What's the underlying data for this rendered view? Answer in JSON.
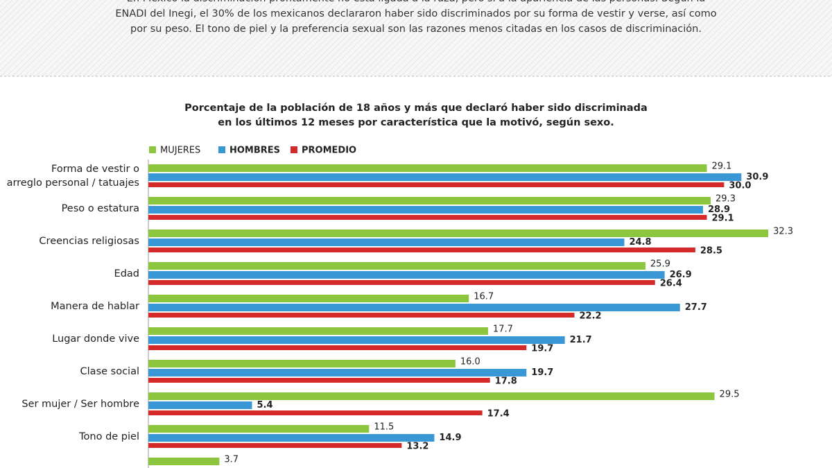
{
  "intro": "En México la discriminación prontamente no está ligada a la raza, pero sí a la apariencia de las personas. Según la\nENADI del Inegi, el 30% de los mexicanos declararon haber sido discriminados por su forma de vestir y verse, así como\npor su peso. El tono de piel y la preferencia sexual son las razones menos citadas en los casos de discriminación.",
  "chart_data": {
    "type": "barh",
    "title": "Porcentaje de la población de 18 años y más que declaró haber sido discriminada\nen los últimos 12 meses por característica que la motivó, según sexo.",
    "categories": [
      "Forma de vestir o\narreglo personal / tatuajes",
      "Peso o estatura",
      "Creencias religiosas",
      "Edad",
      "Manera de hablar",
      "Lugar donde vive",
      "Clase social",
      "Ser mujer / Ser hombre",
      "Tono de piel",
      null
    ],
    "xlim": [
      0,
      33
    ],
    "series": [
      {
        "name": "MUJERES",
        "color": "#8cc63e",
        "values": [
          29.1,
          29.3,
          32.3,
          25.9,
          16.7,
          17.7,
          16.0,
          29.5,
          11.5,
          3.7
        ],
        "value_labels": [
          "29.1",
          "29.3",
          "32.3",
          "25.9",
          "16.7",
          "17.7",
          "16.0",
          "29.5",
          "11.5",
          "3.7"
        ]
      },
      {
        "name": "HOMBRES",
        "color": "#3a97d6",
        "values": [
          30.9,
          28.9,
          24.8,
          26.9,
          27.7,
          21.7,
          19.7,
          5.4,
          14.9,
          null
        ],
        "value_labels": [
          "30.9",
          "28.9",
          "24.8",
          "26.9",
          "27.7",
          "21.7",
          "19.7",
          "5.4",
          "14.9",
          null
        ]
      },
      {
        "name": "PROMEDIO",
        "color": "#d52a2a",
        "values": [
          30.0,
          29.1,
          28.5,
          26.4,
          22.2,
          19.7,
          17.8,
          17.4,
          13.2,
          null
        ],
        "value_labels": [
          "30.0",
          "29.1",
          "28.5",
          "26.4",
          "22.2",
          "19.7",
          "17.8",
          "17.4",
          "13.2",
          null
        ]
      }
    ]
  }
}
